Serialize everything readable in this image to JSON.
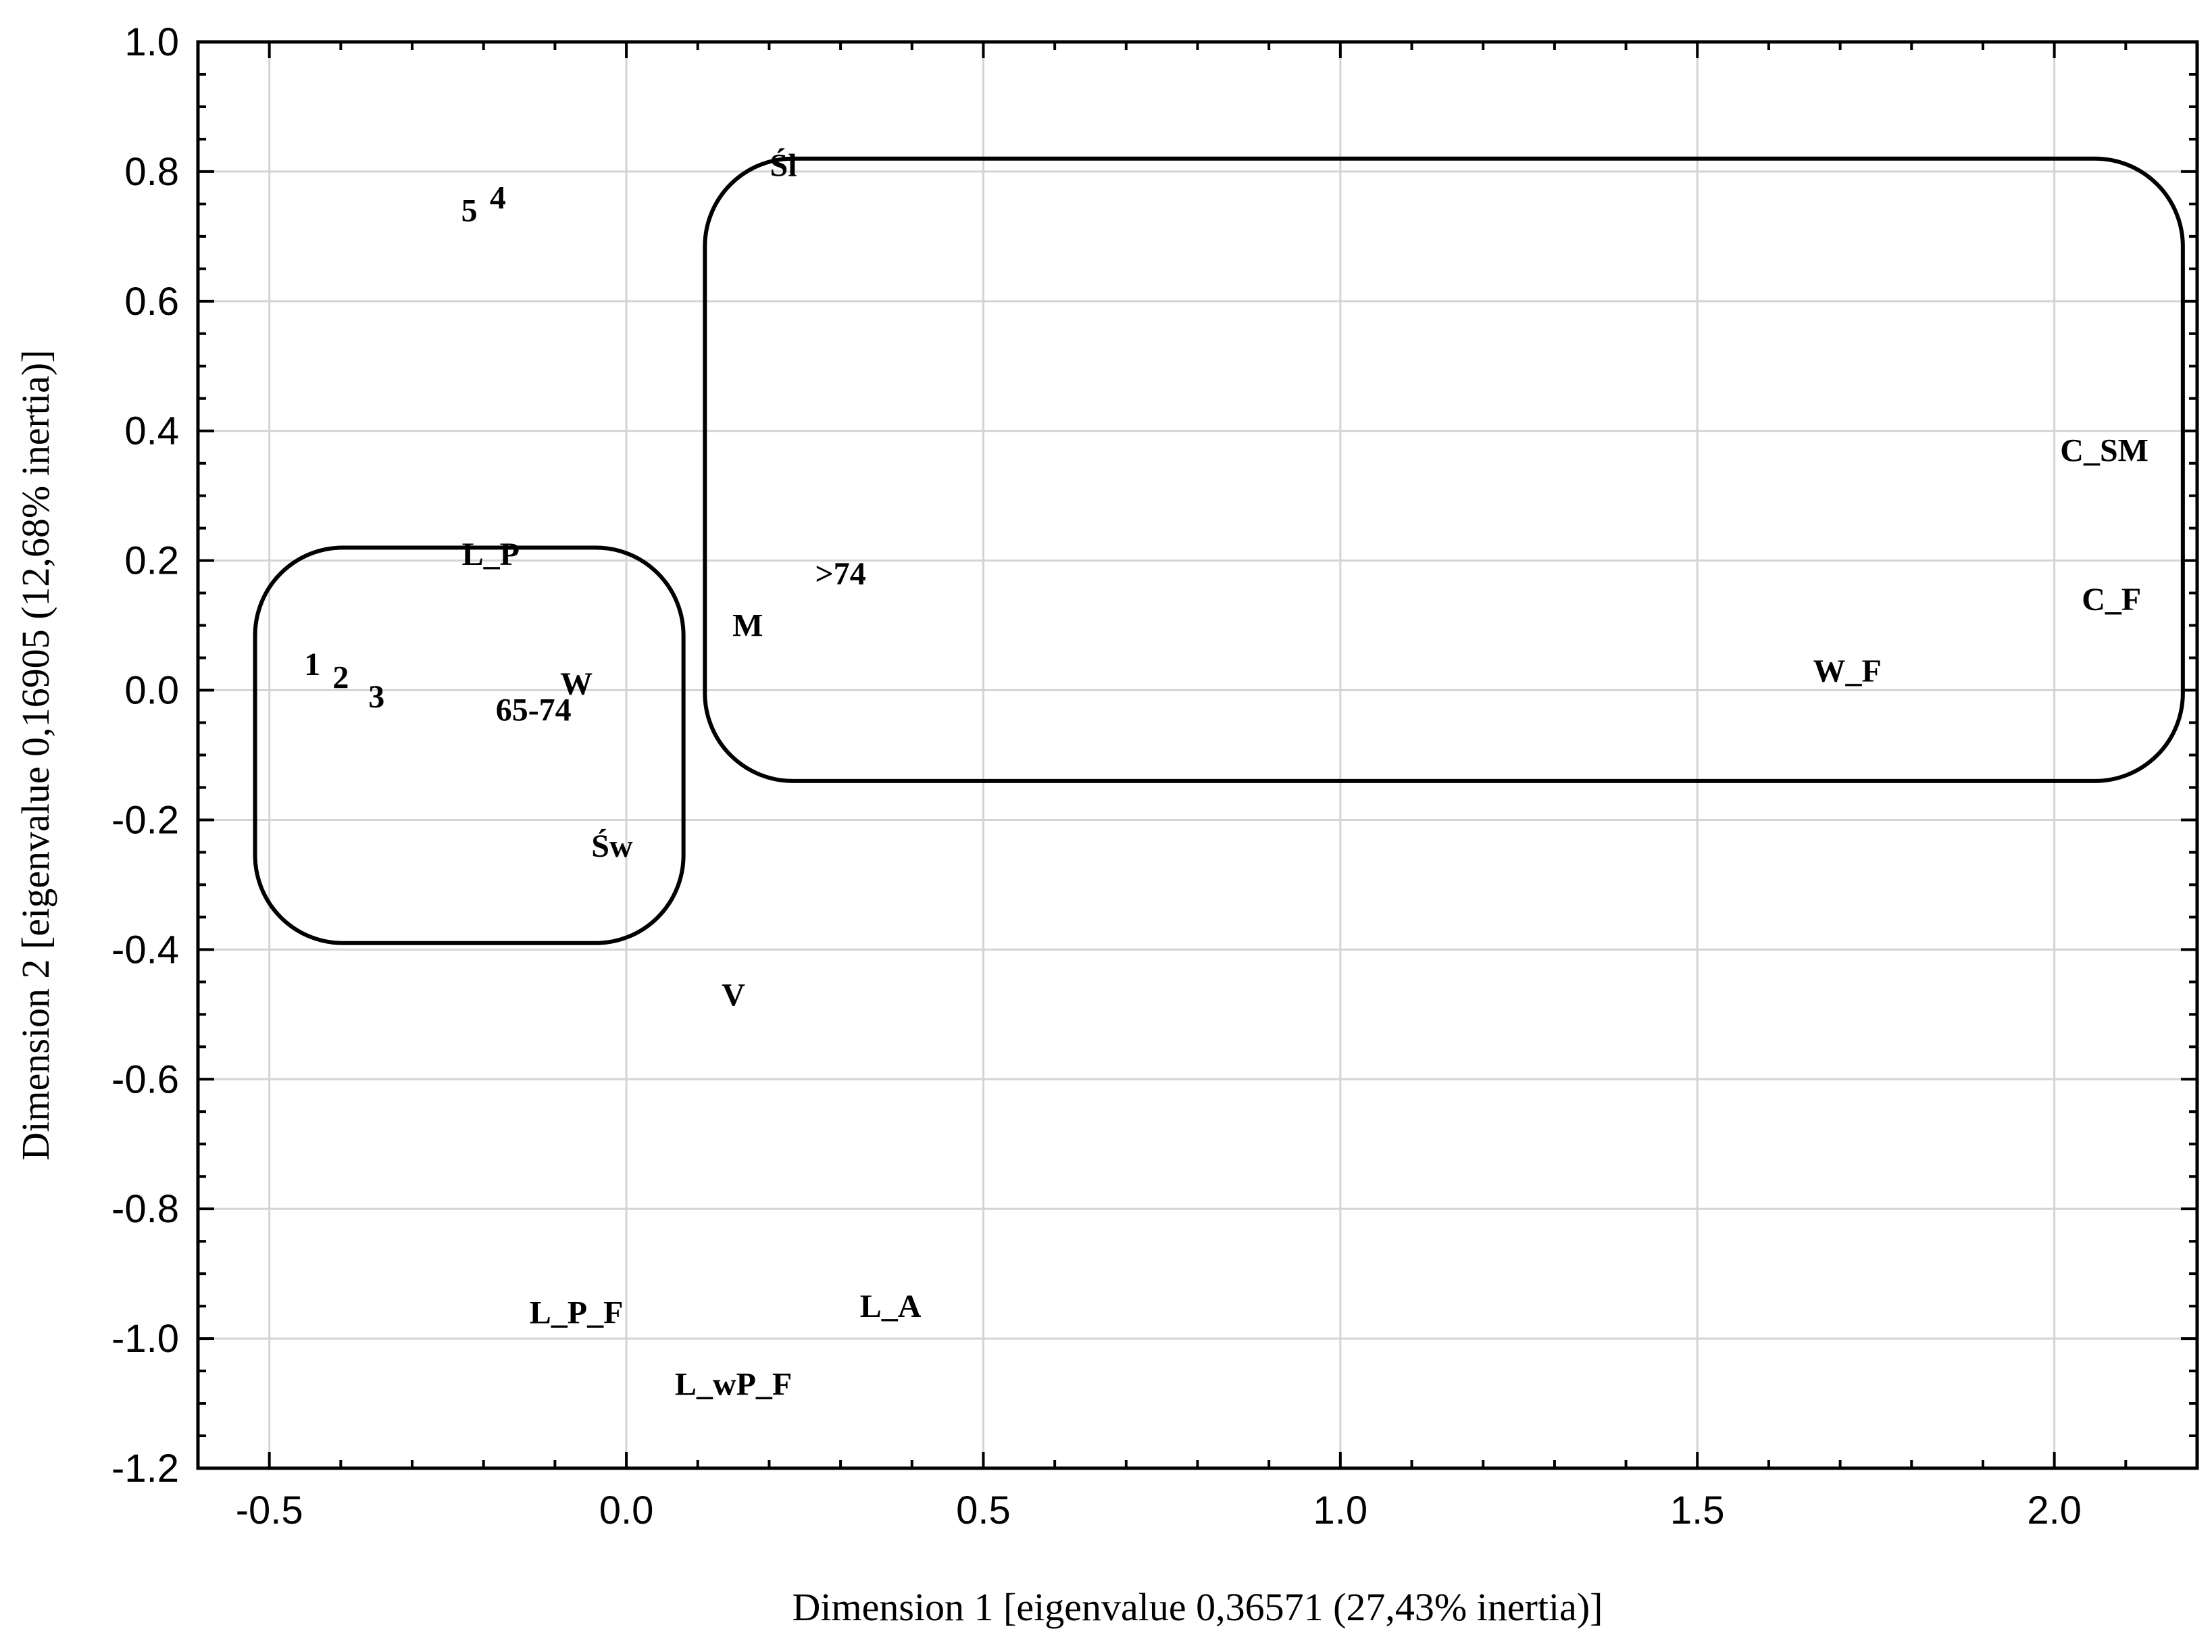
{
  "chart_data": {
    "type": "scatter",
    "title": "",
    "xlabel": "Dimension 1 [eigenvalue 0,36571 (27,43% inertia)]",
    "ylabel": "Dimension 2 [eigenvalue 0,16905 (12,68% inertia)]",
    "xlim": [
      -0.6,
      2.2
    ],
    "ylim": [
      -1.2,
      1.0
    ],
    "x_ticks": [
      "-0.5",
      "0.0",
      "0.5",
      "1.0",
      "1.5",
      "2.0"
    ],
    "x_tick_values": [
      -0.5,
      0.0,
      0.5,
      1.0,
      1.5,
      2.0
    ],
    "y_ticks": [
      "1.0",
      "0.8",
      "0.6",
      "0.4",
      "0.2",
      "0.0",
      "-0.2",
      "-0.4",
      "-0.6",
      "-0.8",
      "-1.0",
      "-1.2"
    ],
    "y_tick_values": [
      1.0,
      0.8,
      0.6,
      0.4,
      0.2,
      0.0,
      -0.2,
      -0.4,
      -0.6,
      -0.8,
      -1.0,
      -1.2
    ],
    "grid": true,
    "points": [
      {
        "label": "1",
        "x": -0.44,
        "y": 0.04
      },
      {
        "label": "2",
        "x": -0.4,
        "y": 0.02
      },
      {
        "label": "3",
        "x": -0.35,
        "y": -0.01
      },
      {
        "label": "4",
        "x": -0.18,
        "y": 0.76
      },
      {
        "label": "5",
        "x": -0.22,
        "y": 0.74
      },
      {
        "label": "L_P",
        "x": -0.19,
        "y": 0.21
      },
      {
        "label": "W",
        "x": -0.07,
        "y": 0.01
      },
      {
        "label": "65-74",
        "x": -0.13,
        "y": -0.03
      },
      {
        "label": "Św",
        "x": -0.02,
        "y": -0.24
      },
      {
        "label": "Śl",
        "x": 0.22,
        "y": 0.81
      },
      {
        "label": ">74",
        "x": 0.3,
        "y": 0.18
      },
      {
        "label": "M",
        "x": 0.17,
        "y": 0.1
      },
      {
        "label": "V",
        "x": 0.15,
        "y": -0.47
      },
      {
        "label": "L_P_F",
        "x": -0.07,
        "y": -0.96
      },
      {
        "label": "L_A",
        "x": 0.37,
        "y": -0.95
      },
      {
        "label": "L_wP_F",
        "x": 0.15,
        "y": -1.07
      },
      {
        "label": "C_SM",
        "x": 2.07,
        "y": 0.37
      },
      {
        "label": "C_F",
        "x": 2.08,
        "y": 0.14
      },
      {
        "label": "W_F",
        "x": 1.71,
        "y": 0.03
      }
    ],
    "groups": [
      {
        "x_range": [
          -0.52,
          0.08
        ],
        "y_range": [
          -0.39,
          0.22
        ]
      },
      {
        "x_range": [
          0.11,
          2.18
        ],
        "y_range": [
          -0.14,
          0.82
        ]
      }
    ]
  }
}
